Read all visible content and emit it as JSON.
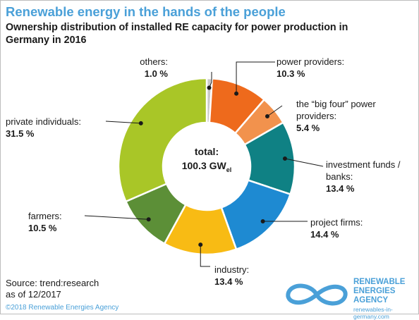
{
  "header": {
    "title": "Renewable energy in the hands of the people",
    "subtitle": "Ownership distribution of installed RE capacity for power production in Germany in 2016"
  },
  "center": {
    "total_label": "total:",
    "total_value": "100.3 GW",
    "total_unit_sub": "el"
  },
  "footer": {
    "source_line1": "Source: trend:research",
    "source_line2": "as of 12/2017",
    "copyright": "©2018 Renewable Energies Agency",
    "logo_line1": "RENEWABLE",
    "logo_line2": "ENERGIES",
    "logo_line3": "AGENCY",
    "logo_url": "renewables-in-germany.com"
  },
  "colors": {
    "title": "#4aa0d8",
    "infinity_logo": "#4aa0d8"
  },
  "chart_data": {
    "type": "pie",
    "donut": true,
    "series": [
      {
        "name": "others:",
        "value": 1.0,
        "label": "1.0 %",
        "color": "#c9c9c9"
      },
      {
        "name": "power providers:",
        "value": 10.3,
        "label": "10.3 %",
        "color": "#ee6a1c"
      },
      {
        "name": "the “big four” power providers:",
        "value": 5.4,
        "label": "5.4 %",
        "color": "#f2924d"
      },
      {
        "name": "investment funds / banks:",
        "value": 13.4,
        "label": "13.4 %",
        "color": "#0f8184"
      },
      {
        "name": "project firms:",
        "value": 14.4,
        "label": "14.4 %",
        "color": "#1e8ad2"
      },
      {
        "name": "industry:",
        "value": 13.4,
        "label": "13.4 %",
        "color": "#f8bb14"
      },
      {
        "name": "farmers:",
        "value": 10.5,
        "label": "10.5 %",
        "color": "#5c8f37"
      },
      {
        "name": "private individuals:",
        "value": 31.5,
        "label": "31.5 %",
        "color": "#a9c627"
      }
    ]
  }
}
